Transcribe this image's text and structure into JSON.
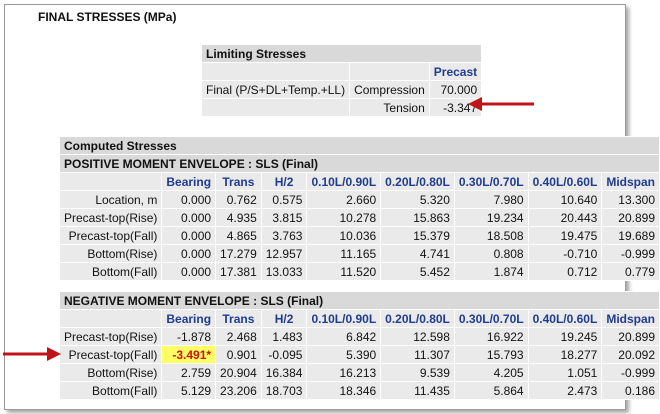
{
  "title": "FINAL STRESSES (MPa)",
  "limiting": {
    "header": "Limiting Stresses",
    "column": "Precast",
    "row_label": "Final (P/S+DL+Temp.+LL)",
    "rows": [
      {
        "name": "Compression",
        "value": "70.000"
      },
      {
        "name": "Tension",
        "value": "-3.347"
      }
    ]
  },
  "computed": {
    "header": "Computed Stresses",
    "columns": [
      "Bearing",
      "Trans",
      "H/2",
      "0.10L/0.90L",
      "0.20L/0.80L",
      "0.30L/0.70L",
      "0.40L/0.60L",
      "Midspan"
    ],
    "positive": {
      "title": "POSITIVE MOMENT ENVELOPE : SLS (Final)",
      "rows": [
        {
          "label": "Location, m",
          "values": [
            "0.000",
            "0.762",
            "0.575",
            "2.660",
            "5.320",
            "7.980",
            "10.640",
            "13.300"
          ]
        },
        {
          "label": "Precast-top(Rise)",
          "values": [
            "0.000",
            "4.935",
            "3.815",
            "10.278",
            "15.863",
            "19.234",
            "20.443",
            "20.899"
          ]
        },
        {
          "label": "Precast-top(Fall)",
          "values": [
            "0.000",
            "4.865",
            "3.763",
            "10.036",
            "15.379",
            "18.508",
            "19.475",
            "19.689"
          ]
        },
        {
          "label": "Bottom(Rise)",
          "values": [
            "0.000",
            "17.279",
            "12.957",
            "11.165",
            "4.741",
            "0.808",
            "-0.710",
            "-0.999"
          ]
        },
        {
          "label": "Bottom(Fall)",
          "values": [
            "0.000",
            "17.381",
            "13.033",
            "11.520",
            "5.452",
            "1.874",
            "0.712",
            "0.779"
          ]
        }
      ]
    },
    "negative": {
      "title": "NEGATIVE MOMENT ENVELOPE : SLS (Final)",
      "rows": [
        {
          "label": "Precast-top(Rise)",
          "values": [
            "-1.878",
            "2.468",
            "1.483",
            "6.842",
            "12.598",
            "16.922",
            "19.245",
            "20.899"
          ]
        },
        {
          "label": "Precast-top(Fall)",
          "values": [
            "-3.491*",
            "0.901",
            "-0.095",
            "5.390",
            "11.307",
            "15.793",
            "18.277",
            "20.092"
          ]
        },
        {
          "label": "Bottom(Rise)",
          "values": [
            "2.759",
            "20.904",
            "16.384",
            "16.213",
            "9.539",
            "4.205",
            "1.051",
            "-0.999"
          ]
        },
        {
          "label": "Bottom(Fall)",
          "values": [
            "5.129",
            "23.206",
            "18.703",
            "18.346",
            "11.435",
            "5.864",
            "2.473",
            "0.186"
          ]
        }
      ]
    }
  },
  "colors": {
    "header_text": "#1f3c8f",
    "highlight_bg": "#ffff66",
    "highlight_text": "#d01010",
    "arrow": "#c0141b"
  }
}
